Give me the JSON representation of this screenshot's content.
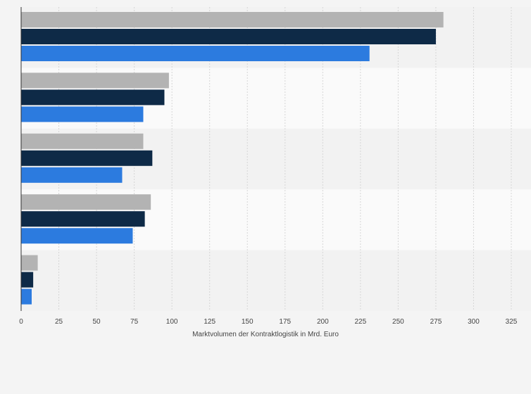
{
  "chart_data": {
    "type": "bar",
    "orientation": "horizontal",
    "title": "",
    "xlabel": "Marktvolumen der Kontraktlogistik in Mrd. Euro",
    "ylabel": "",
    "xlim": [
      0,
      325
    ],
    "xticks": [
      0,
      25,
      50,
      75,
      100,
      125,
      150,
      175,
      200,
      225,
      250,
      275,
      300,
      325
    ],
    "xtick_labels": [
      "0",
      "25",
      "50",
      "75",
      "100",
      "125",
      "150",
      "175",
      "200",
      "225",
      "250",
      "275",
      "300",
      "325"
    ],
    "grid": true,
    "legend": false,
    "categories": [
      "",
      "",
      "",
      "",
      ""
    ],
    "series": [
      {
        "color": "#b3b3b3",
        "values": [
          280,
          98,
          81,
          86,
          11
        ]
      },
      {
        "color": "#0e2a47",
        "values": [
          275,
          95,
          87,
          82,
          8
        ]
      },
      {
        "color": "#2c7bdf",
        "values": [
          231,
          81,
          67,
          74,
          7
        ]
      }
    ]
  }
}
